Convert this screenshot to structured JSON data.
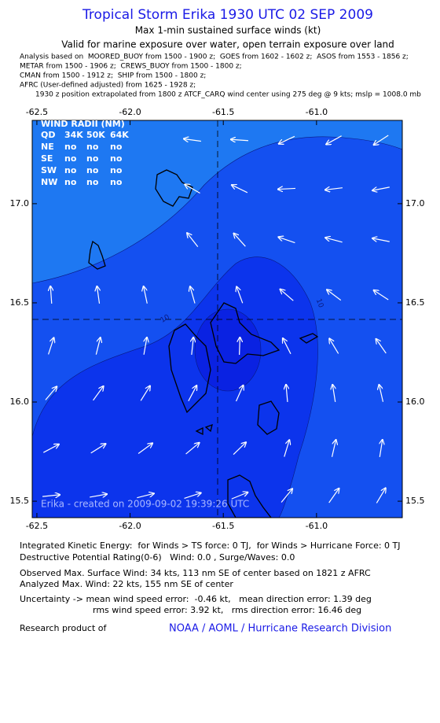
{
  "header": {
    "title": "Tropical Storm Erika 1930 UTC 02 SEP 2009",
    "subtitle": "Max 1-min sustained surface winds (kt)",
    "validity": "Valid for marine exposure over water, open terrain exposure over land",
    "analysis_lines": [
      "Analysis based on  MOORED_BUOY from 1500 - 1900 z;  GOES from 1602 - 1602 z;  ASOS from 1553 - 1856 z;",
      "METAR from 1500 - 1906 z;  CREWS_BUOY from 1500 - 1800 z;",
      "CMAN from 1500 - 1912 z;  SHIP from 1500 - 1800 z;",
      "AFRC (User-defined adjusted) from 1625 - 1928 z;",
      "1930 z position extrapolated from 1800 z ATCF_CARQ wind center using 275 deg @ 9 kts; mslp = 1008.0 mb"
    ]
  },
  "map": {
    "xlim": [
      -62.525,
      -60.54
    ],
    "ylim": [
      15.417,
      17.42
    ],
    "xticks": [
      {
        "value": -62.5,
        "label": "-62.5"
      },
      {
        "value": -62.0,
        "label": "-62.0"
      },
      {
        "value": -61.5,
        "label": "-61.5"
      },
      {
        "value": -61.0,
        "label": "-61.0"
      }
    ],
    "yticks": [
      {
        "value": 17.0,
        "label": "17.0"
      },
      {
        "value": 16.5,
        "label": "16.5"
      },
      {
        "value": 16.0,
        "label": "16.0"
      },
      {
        "value": 15.5,
        "label": "15.5"
      }
    ],
    "contour_labels": [
      "10",
      "10"
    ],
    "wind_radii": {
      "title": "WIND RADII (NM)",
      "header": [
        "QD",
        "34K",
        "50K",
        "64K"
      ],
      "rows": [
        [
          "NE",
          "no",
          "no",
          "no"
        ],
        [
          "SE",
          "no",
          "no",
          "no"
        ],
        [
          "SW",
          "no",
          "no",
          "no"
        ],
        [
          "NW",
          "no",
          "no",
          "no"
        ]
      ]
    },
    "credit": "Erika - created on 2009-09-02 19:39:26 UTC"
  },
  "footer": {
    "lines": [
      "Integrated Kinetic Energy:  for Winds > TS force: 0 TJ,  for Winds > Hurricane Force: 0 TJ",
      "Destructive Potential Rating(0-6)   Wind: 0.0 , Surge/Waves: 0.0",
      "Observed Max. Surface Wind: 34 kts, 113 nm SE of center based on 1821 z AFRC",
      "Analyzed Max. Wind: 22 kts, 155 nm SE of center",
      "Uncertainty -> mean wind speed error:  -0.46 kt,   mean direction error: 1.39 deg",
      "rms wind speed error: 3.92 kt,   rms direction error: 16.46 deg"
    ],
    "research_label": "Research product of",
    "organization": "NOAA / AOML / Hurricane Research Division"
  }
}
